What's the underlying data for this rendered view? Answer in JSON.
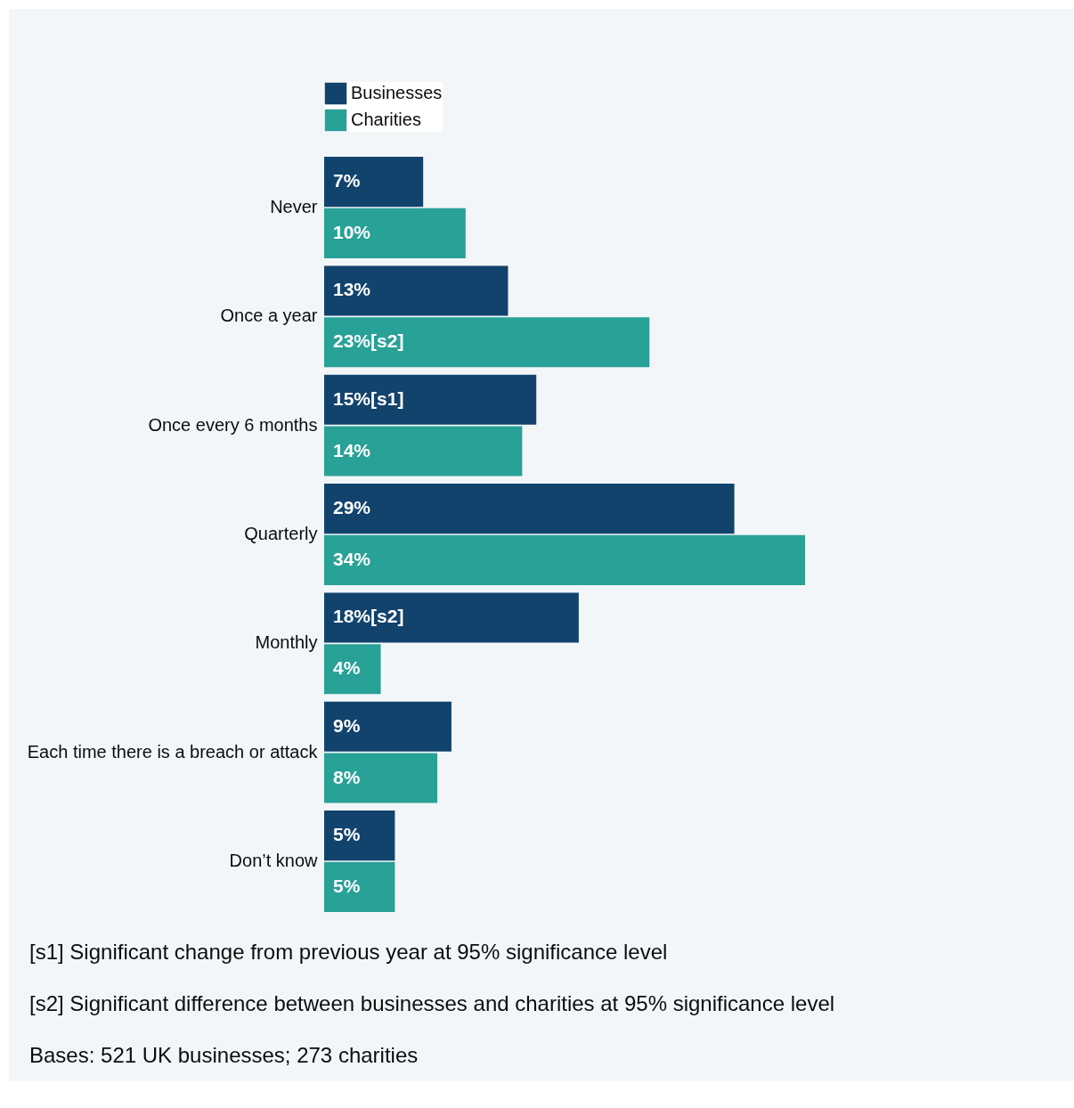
{
  "chart_data": {
    "type": "bar",
    "orientation": "horizontal",
    "categories": [
      "Never",
      "Once a year",
      "Once every 6 months",
      "Quarterly",
      "Monthly",
      "Each time there is a breach or attack",
      "Don’t know"
    ],
    "series": [
      {
        "name": "Businesses",
        "color": "#12436d",
        "values": [
          7,
          13,
          15,
          29,
          18,
          9,
          5
        ],
        "value_labels": [
          "7%",
          "13%",
          "15%[s1]",
          "29%",
          "18%[s2]",
          "9%",
          "5%"
        ]
      },
      {
        "name": "Charities",
        "color": "#28a197",
        "values": [
          10,
          23,
          14,
          34,
          4,
          8,
          5
        ],
        "value_labels": [
          "10%",
          "23%[s2]",
          "14%",
          "34%",
          "4%",
          "8%",
          "5%"
        ]
      }
    ],
    "legend": "top left",
    "annotations": [
      "[s1] Significant change from previous year at 95% significance level",
      "[s2] Significant difference between businesses and charities at 95% significance level",
      "Bases: 521 UK businesses; 273 charities"
    ]
  }
}
